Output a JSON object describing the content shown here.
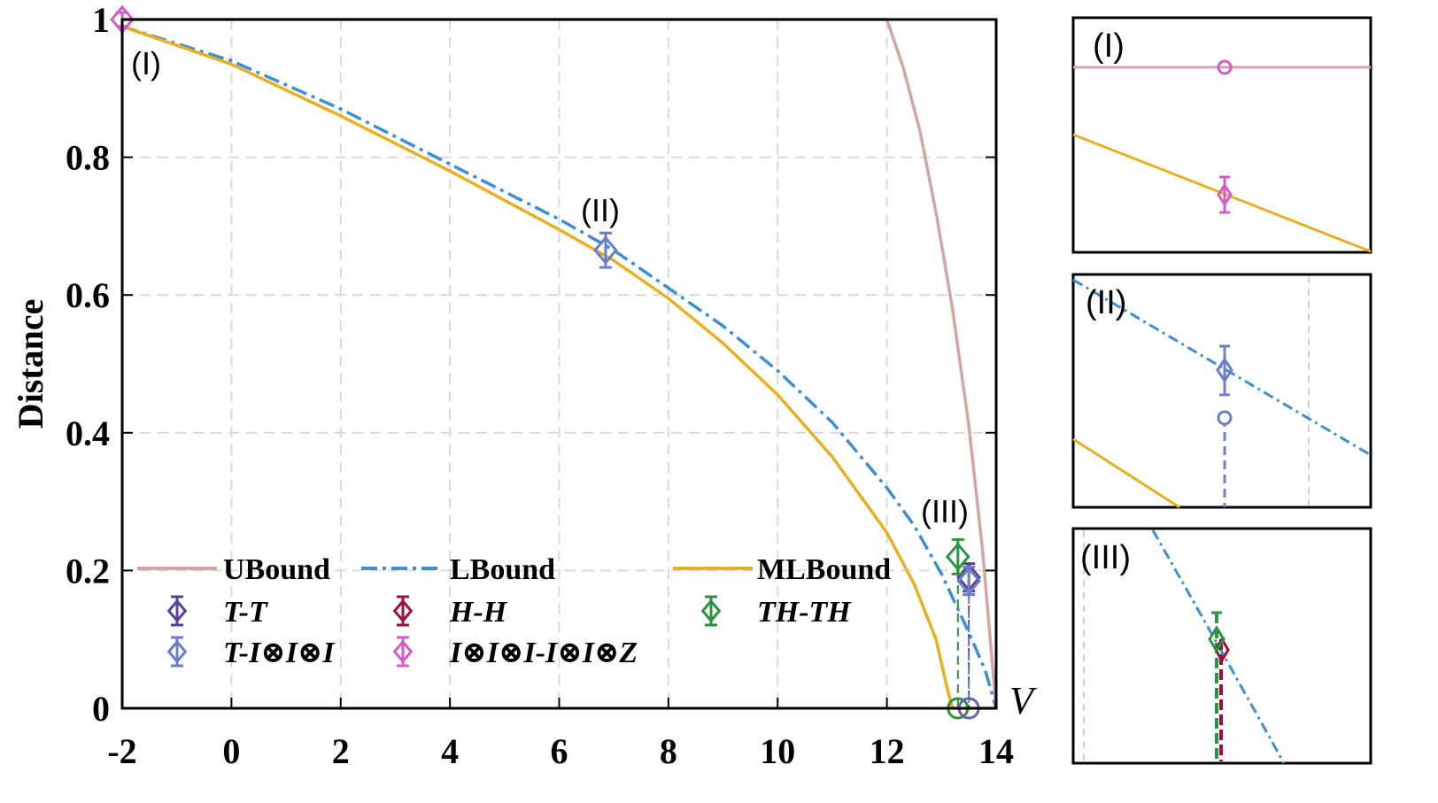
{
  "chart_data": {
    "type": "line",
    "title": "",
    "xlabel": "V",
    "ylabel": "Distance",
    "xlim": [
      -2,
      14
    ],
    "ylim": [
      0,
      1
    ],
    "x_ticks": [
      "-2",
      "0",
      "2",
      "4",
      "6",
      "8",
      "10",
      "12",
      "14"
    ],
    "y_ticks": [
      "0",
      "0.2",
      "0.4",
      "0.6",
      "0.8",
      "1"
    ],
    "grid": true,
    "annotations": [
      "(I)",
      "(II)",
      "(III)"
    ],
    "series": [
      {
        "name": "UBound",
        "style": "solid",
        "color": "#d4a5a5",
        "x": [
          -2,
          12,
          12.3,
          12.6,
          12.9,
          13.2,
          13.5,
          13.75,
          14
        ],
        "y": [
          1,
          1,
          0.93,
          0.84,
          0.72,
          0.58,
          0.41,
          0.23,
          0.0
        ]
      },
      {
        "name": "LBound",
        "style": "dashdot",
        "color": "#3d8fd1",
        "x": [
          -2,
          0,
          2,
          4,
          6,
          7,
          8,
          9,
          10,
          11,
          12,
          12.5,
          13,
          13.5,
          13.8,
          14
        ],
        "y": [
          0.99,
          0.94,
          0.87,
          0.79,
          0.71,
          0.665,
          0.61,
          0.555,
          0.49,
          0.415,
          0.32,
          0.265,
          0.195,
          0.11,
          0.055,
          0.0
        ]
      },
      {
        "name": "MLBound",
        "style": "solid",
        "color": "#e8b020",
        "x": [
          -2,
          0,
          2,
          4,
          6,
          7,
          8,
          9,
          10,
          11,
          12,
          12.5,
          12.9,
          13.1,
          13.2,
          14
        ],
        "y": [
          0.99,
          0.935,
          0.86,
          0.78,
          0.695,
          0.65,
          0.595,
          0.53,
          0.455,
          0.365,
          0.255,
          0.18,
          0.1,
          0.03,
          0.0,
          0.0
        ]
      }
    ],
    "points": [
      {
        "name": "T-T",
        "color": "#5b3fa0",
        "marker": "diamond",
        "x": [
          13.5
        ],
        "y": [
          0.19
        ],
        "err": [
          0.02
        ]
      },
      {
        "name": "T-I⊗I⊗I",
        "color": "#6a7fc4",
        "marker": "diamond",
        "x": [
          6.85,
          13.5
        ],
        "y": [
          0.665,
          0.185
        ],
        "err": [
          0.025,
          0.02
        ]
      },
      {
        "name": "H-H",
        "color": "#a01030",
        "marker": "diamond",
        "x": [],
        "y": [],
        "err": []
      },
      {
        "name": "I⊗I⊗I-I⊗I⊗Z",
        "color": "#d65ac8",
        "marker": "diamond",
        "x": [
          -2
        ],
        "y": [
          1.0
        ],
        "err": [
          0.01
        ]
      },
      {
        "name": "TH-TH",
        "color": "#2a9440",
        "marker": "diamond",
        "x": [
          13.3
        ],
        "y": [
          0.22
        ],
        "err": [
          0.025
        ]
      }
    ],
    "zero_circles": [
      {
        "color": "#2a9440",
        "x": 13.3,
        "y": 0
      },
      {
        "color": "#6a5fb0",
        "x": 13.5,
        "y": 0
      }
    ],
    "legend": {
      "placement": "lower-left",
      "lines": [
        "UBound",
        "LBound",
        "MLBound"
      ],
      "markers": [
        "T-T",
        "H-H",
        "TH-TH",
        "T-I⊗I⊗I",
        "I⊗I⊗I-I⊗I⊗Z"
      ]
    },
    "insets": [
      {
        "label": "(I)"
      },
      {
        "label": "(II)"
      },
      {
        "label": "(III)"
      }
    ]
  }
}
